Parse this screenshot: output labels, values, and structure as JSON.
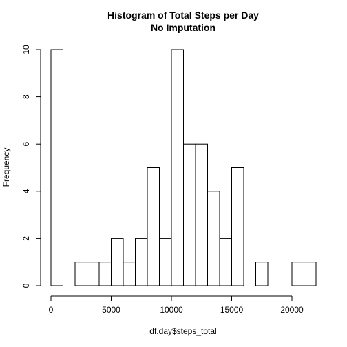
{
  "chart_data": {
    "type": "bar",
    "title": "Histogram of Total Steps per Day",
    "subtitle": "No Imputation",
    "xlabel": "df.day$steps_total",
    "ylabel": "Frequency",
    "bin_width": 1000,
    "bin_start": 0,
    "values": [
      10,
      0,
      1,
      1,
      1,
      2,
      1,
      2,
      5,
      2,
      10,
      6,
      6,
      4,
      2,
      5,
      0,
      1,
      0,
      0,
      1,
      1
    ],
    "xlim": [
      0,
      22000
    ],
    "ylim": [
      0,
      10
    ],
    "xticks": [
      0,
      5000,
      10000,
      15000,
      20000
    ],
    "yticks": [
      0,
      2,
      4,
      6,
      8,
      10
    ],
    "grid": false,
    "legend": "none"
  }
}
